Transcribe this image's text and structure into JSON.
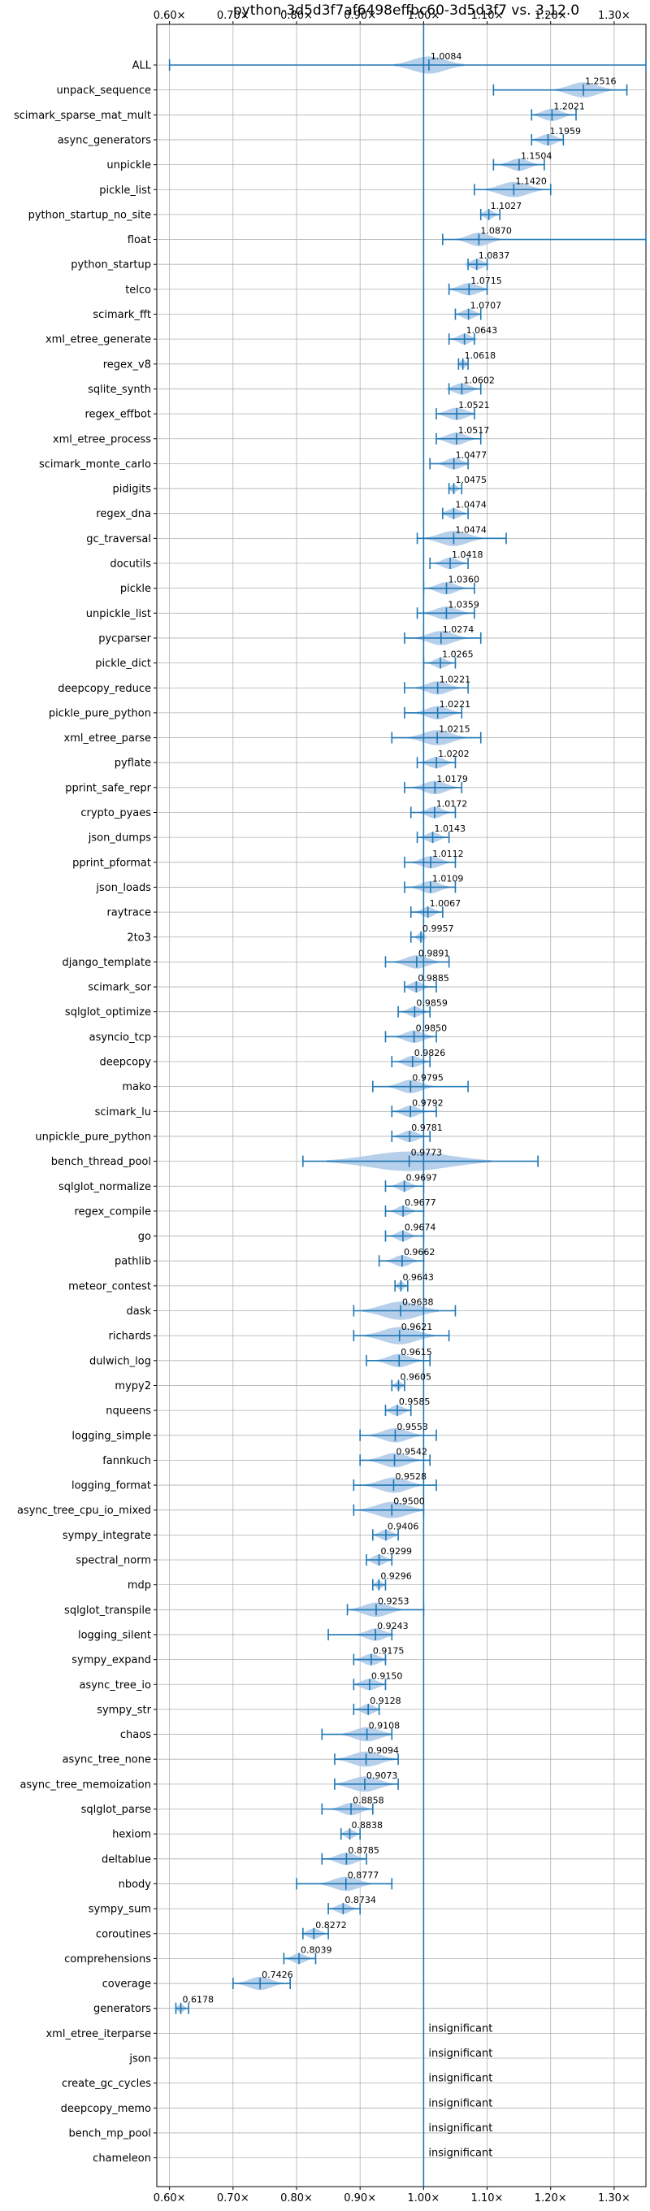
{
  "chart_data": {
    "type": "violin",
    "title": "python-3d5d3f7af6498effbc60-3d5d3f7 vs. 3.12.0",
    "xlim": [
      0.58,
      1.35
    ],
    "xticks": [
      0.6,
      0.7,
      0.8,
      0.9,
      1.0,
      1.1,
      1.2,
      1.3
    ],
    "xtick_labels": [
      "0.60×",
      "0.70×",
      "0.80×",
      "0.90×",
      "1.00×",
      "1.10×",
      "1.20×",
      "1.30×"
    ],
    "reference_line": 1.0,
    "grid": true,
    "colors": {
      "violin": "#a9c7e6",
      "errorbar": "#1f77b4",
      "reference": "#1f77b4",
      "grid": "#b0b0b0"
    },
    "insignificant_label": "insignificant",
    "benchmarks": [
      {
        "name": "ALL",
        "mean": 1.0084,
        "label": "1.0084",
        "min": 0.6,
        "max": 1.35,
        "hw": 0.055
      },
      {
        "name": "unpack_sequence",
        "mean": 1.2516,
        "label": "1.2516",
        "min": 1.11,
        "max": 1.32,
        "hw": 0.045
      },
      {
        "name": "scimark_sparse_mat_mult",
        "mean": 1.2021,
        "label": "1.2021",
        "min": 1.17,
        "max": 1.24,
        "hw": 0.03
      },
      {
        "name": "async_generators",
        "mean": 1.1959,
        "label": "1.1959",
        "min": 1.17,
        "max": 1.22,
        "hw": 0.025
      },
      {
        "name": "unpickle",
        "mean": 1.1504,
        "label": "1.1504",
        "min": 1.11,
        "max": 1.19,
        "hw": 0.03
      },
      {
        "name": "pickle_list",
        "mean": 1.142,
        "label": "1.1420",
        "min": 1.08,
        "max": 1.2,
        "hw": 0.045
      },
      {
        "name": "python_startup_no_site",
        "mean": 1.1027,
        "label": "1.1027",
        "min": 1.09,
        "max": 1.12,
        "hw": 0.015
      },
      {
        "name": "float",
        "mean": 1.087,
        "label": "1.0870",
        "min": 1.03,
        "max": 1.35,
        "hw": 0.035
      },
      {
        "name": "python_startup",
        "mean": 1.0837,
        "label": "1.0837",
        "min": 1.07,
        "max": 1.1,
        "hw": 0.02
      },
      {
        "name": "telco",
        "mean": 1.0715,
        "label": "1.0715",
        "min": 1.04,
        "max": 1.1,
        "hw": 0.03
      },
      {
        "name": "scimark_fft",
        "mean": 1.0707,
        "label": "1.0707",
        "min": 1.05,
        "max": 1.09,
        "hw": 0.02
      },
      {
        "name": "xml_etree_generate",
        "mean": 1.0643,
        "label": "1.0643",
        "min": 1.04,
        "max": 1.08,
        "hw": 0.02
      },
      {
        "name": "regex_v8",
        "mean": 1.0618,
        "label": "1.0618",
        "min": 1.055,
        "max": 1.07,
        "hw": 0.01
      },
      {
        "name": "sqlite_synth",
        "mean": 1.0602,
        "label": "1.0602",
        "min": 1.04,
        "max": 1.09,
        "hw": 0.025
      },
      {
        "name": "regex_effbot",
        "mean": 1.0521,
        "label": "1.0521",
        "min": 1.02,
        "max": 1.08,
        "hw": 0.03
      },
      {
        "name": "xml_etree_process",
        "mean": 1.0517,
        "label": "1.0517",
        "min": 1.02,
        "max": 1.09,
        "hw": 0.03
      },
      {
        "name": "scimark_monte_carlo",
        "mean": 1.0477,
        "label": "1.0477",
        "min": 1.01,
        "max": 1.07,
        "hw": 0.025
      },
      {
        "name": "pidigits",
        "mean": 1.0475,
        "label": "1.0475",
        "min": 1.04,
        "max": 1.06,
        "hw": 0.01
      },
      {
        "name": "regex_dna",
        "mean": 1.0474,
        "label": "1.0474",
        "min": 1.03,
        "max": 1.07,
        "hw": 0.02
      },
      {
        "name": "gc_traversal",
        "mean": 1.0474,
        "label": "1.0474",
        "min": 0.99,
        "max": 1.13,
        "hw": 0.045
      },
      {
        "name": "docutils",
        "mean": 1.0418,
        "label": "1.0418",
        "min": 1.01,
        "max": 1.07,
        "hw": 0.025
      },
      {
        "name": "pickle",
        "mean": 1.036,
        "label": "1.0360",
        "min": 1.0,
        "max": 1.08,
        "hw": 0.03
      },
      {
        "name": "unpickle_list",
        "mean": 1.0359,
        "label": "1.0359",
        "min": 0.99,
        "max": 1.08,
        "hw": 0.035
      },
      {
        "name": "pycparser",
        "mean": 1.0274,
        "label": "1.0274",
        "min": 0.97,
        "max": 1.09,
        "hw": 0.04
      },
      {
        "name": "pickle_dict",
        "mean": 1.0265,
        "label": "1.0265",
        "min": 1.0,
        "max": 1.05,
        "hw": 0.02
      },
      {
        "name": "deepcopy_reduce",
        "mean": 1.0221,
        "label": "1.0221",
        "min": 0.97,
        "max": 1.07,
        "hw": 0.035
      },
      {
        "name": "pickle_pure_python",
        "mean": 1.0221,
        "label": "1.0221",
        "min": 0.97,
        "max": 1.06,
        "hw": 0.035
      },
      {
        "name": "xml_etree_parse",
        "mean": 1.0215,
        "label": "1.0215",
        "min": 0.95,
        "max": 1.09,
        "hw": 0.045
      },
      {
        "name": "pyflate",
        "mean": 1.0202,
        "label": "1.0202",
        "min": 0.99,
        "max": 1.05,
        "hw": 0.025
      },
      {
        "name": "pprint_safe_repr",
        "mean": 1.0179,
        "label": "1.0179",
        "min": 0.97,
        "max": 1.06,
        "hw": 0.035
      },
      {
        "name": "crypto_pyaes",
        "mean": 1.0172,
        "label": "1.0172",
        "min": 0.98,
        "max": 1.05,
        "hw": 0.025
      },
      {
        "name": "json_dumps",
        "mean": 1.0143,
        "label": "1.0143",
        "min": 0.99,
        "max": 1.04,
        "hw": 0.02
      },
      {
        "name": "pprint_pformat",
        "mean": 1.0112,
        "label": "1.0112",
        "min": 0.97,
        "max": 1.05,
        "hw": 0.03
      },
      {
        "name": "json_loads",
        "mean": 1.0109,
        "label": "1.0109",
        "min": 0.97,
        "max": 1.05,
        "hw": 0.03
      },
      {
        "name": "raytrace",
        "mean": 1.0067,
        "label": "1.0067",
        "min": 0.98,
        "max": 1.03,
        "hw": 0.02
      },
      {
        "name": "2to3",
        "mean": 0.9957,
        "label": "0.9957",
        "min": 0.98,
        "max": 1.0,
        "hw": 0.01
      },
      {
        "name": "django_template",
        "mean": 0.9891,
        "label": "0.9891",
        "min": 0.94,
        "max": 1.04,
        "hw": 0.035
      },
      {
        "name": "scimark_sor",
        "mean": 0.9885,
        "label": "0.9885",
        "min": 0.97,
        "max": 1.02,
        "hw": 0.02
      },
      {
        "name": "sqlglot_optimize",
        "mean": 0.9859,
        "label": "0.9859",
        "min": 0.96,
        "max": 1.01,
        "hw": 0.02
      },
      {
        "name": "asyncio_tcp",
        "mean": 0.985,
        "label": "0.9850",
        "min": 0.94,
        "max": 1.02,
        "hw": 0.03
      },
      {
        "name": "deepcopy",
        "mean": 0.9826,
        "label": "0.9826",
        "min": 0.95,
        "max": 1.01,
        "hw": 0.025
      },
      {
        "name": "mako",
        "mean": 0.9795,
        "label": "0.9795",
        "min": 0.92,
        "max": 1.07,
        "hw": 0.035
      },
      {
        "name": "scimark_lu",
        "mean": 0.9792,
        "label": "0.9792",
        "min": 0.95,
        "max": 1.02,
        "hw": 0.025
      },
      {
        "name": "unpickle_pure_python",
        "mean": 0.9781,
        "label": "0.9781",
        "min": 0.95,
        "max": 1.01,
        "hw": 0.025
      },
      {
        "name": "bench_thread_pool",
        "mean": 0.9773,
        "label": "0.9773",
        "min": 0.81,
        "max": 1.18,
        "hw": 0.13
      },
      {
        "name": "sqlglot_normalize",
        "mean": 0.9697,
        "label": "0.9697",
        "min": 0.94,
        "max": 1.0,
        "hw": 0.02
      },
      {
        "name": "regex_compile",
        "mean": 0.9677,
        "label": "0.9677",
        "min": 0.94,
        "max": 1.0,
        "hw": 0.02
      },
      {
        "name": "go",
        "mean": 0.9674,
        "label": "0.9674",
        "min": 0.94,
        "max": 1.0,
        "hw": 0.02
      },
      {
        "name": "pathlib",
        "mean": 0.9662,
        "label": "0.9662",
        "min": 0.93,
        "max": 1.0,
        "hw": 0.025
      },
      {
        "name": "meteor_contest",
        "mean": 0.9643,
        "label": "0.9643",
        "min": 0.955,
        "max": 0.975,
        "hw": 0.01
      },
      {
        "name": "dask",
        "mean": 0.9638,
        "label": "0.9638",
        "min": 0.89,
        "max": 1.05,
        "hw": 0.06
      },
      {
        "name": "richards",
        "mean": 0.9621,
        "label": "0.9621",
        "min": 0.89,
        "max": 1.04,
        "hw": 0.055
      },
      {
        "name": "dulwich_log",
        "mean": 0.9615,
        "label": "0.9615",
        "min": 0.91,
        "max": 1.01,
        "hw": 0.035
      },
      {
        "name": "mypy2",
        "mean": 0.9605,
        "label": "0.9605",
        "min": 0.95,
        "max": 0.97,
        "hw": 0.01
      },
      {
        "name": "nqueens",
        "mean": 0.9585,
        "label": "0.9585",
        "min": 0.94,
        "max": 0.98,
        "hw": 0.02
      },
      {
        "name": "logging_simple",
        "mean": 0.9553,
        "label": "0.9553",
        "min": 0.9,
        "max": 1.02,
        "hw": 0.04
      },
      {
        "name": "fannkuch",
        "mean": 0.9542,
        "label": "0.9542",
        "min": 0.9,
        "max": 1.01,
        "hw": 0.04
      },
      {
        "name": "logging_format",
        "mean": 0.9528,
        "label": "0.9528",
        "min": 0.89,
        "max": 1.02,
        "hw": 0.045
      },
      {
        "name": "async_tree_cpu_io_mixed",
        "mean": 0.95,
        "label": "0.9500",
        "min": 0.89,
        "max": 1.0,
        "hw": 0.05
      },
      {
        "name": "sympy_integrate",
        "mean": 0.9406,
        "label": "0.9406",
        "min": 0.92,
        "max": 0.96,
        "hw": 0.02
      },
      {
        "name": "spectral_norm",
        "mean": 0.9299,
        "label": "0.9299",
        "min": 0.91,
        "max": 0.95,
        "hw": 0.02
      },
      {
        "name": "mdp",
        "mean": 0.9296,
        "label": "0.9296",
        "min": 0.92,
        "max": 0.94,
        "hw": 0.01
      },
      {
        "name": "sqlglot_transpile",
        "mean": 0.9253,
        "label": "0.9253",
        "min": 0.88,
        "max": 1.0,
        "hw": 0.04
      },
      {
        "name": "logging_silent",
        "mean": 0.9243,
        "label": "0.9243",
        "min": 0.85,
        "max": 0.95,
        "hw": 0.03
      },
      {
        "name": "sympy_expand",
        "mean": 0.9175,
        "label": "0.9175",
        "min": 0.89,
        "max": 0.94,
        "hw": 0.025
      },
      {
        "name": "async_tree_io",
        "mean": 0.915,
        "label": "0.9150",
        "min": 0.89,
        "max": 0.94,
        "hw": 0.025
      },
      {
        "name": "sympy_str",
        "mean": 0.9128,
        "label": "0.9128",
        "min": 0.89,
        "max": 0.93,
        "hw": 0.02
      },
      {
        "name": "chaos",
        "mean": 0.9108,
        "label": "0.9108",
        "min": 0.84,
        "max": 0.95,
        "hw": 0.04
      },
      {
        "name": "async_tree_none",
        "mean": 0.9094,
        "label": "0.9094",
        "min": 0.86,
        "max": 0.96,
        "hw": 0.045
      },
      {
        "name": "async_tree_memoization",
        "mean": 0.9073,
        "label": "0.9073",
        "min": 0.86,
        "max": 0.96,
        "hw": 0.045
      },
      {
        "name": "sqlglot_parse",
        "mean": 0.8858,
        "label": "0.8858",
        "min": 0.84,
        "max": 0.92,
        "hw": 0.03
      },
      {
        "name": "hexiom",
        "mean": 0.8838,
        "label": "0.8838",
        "min": 0.87,
        "max": 0.9,
        "hw": 0.015
      },
      {
        "name": "deltablue",
        "mean": 0.8785,
        "label": "0.8785",
        "min": 0.84,
        "max": 0.91,
        "hw": 0.03
      },
      {
        "name": "nbody",
        "mean": 0.8777,
        "label": "0.8777",
        "min": 0.8,
        "max": 0.95,
        "hw": 0.04
      },
      {
        "name": "sympy_sum",
        "mean": 0.8734,
        "label": "0.8734",
        "min": 0.85,
        "max": 0.9,
        "hw": 0.02
      },
      {
        "name": "coroutines",
        "mean": 0.8272,
        "label": "0.8272",
        "min": 0.81,
        "max": 0.85,
        "hw": 0.02
      },
      {
        "name": "comprehensions",
        "mean": 0.8039,
        "label": "0.8039",
        "min": 0.78,
        "max": 0.83,
        "hw": 0.02
      },
      {
        "name": "coverage",
        "mean": 0.7426,
        "label": "0.7426",
        "min": 0.7,
        "max": 0.79,
        "hw": 0.035
      },
      {
        "name": "generators",
        "mean": 0.6178,
        "label": "0.6178",
        "min": 0.61,
        "max": 0.63,
        "hw": 0.01
      },
      {
        "name": "xml_etree_iterparse",
        "insignificant": true
      },
      {
        "name": "json",
        "insignificant": true
      },
      {
        "name": "create_gc_cycles",
        "insignificant": true
      },
      {
        "name": "deepcopy_memo",
        "insignificant": true
      },
      {
        "name": "bench_mp_pool",
        "insignificant": true
      },
      {
        "name": "chameleon",
        "insignificant": true
      }
    ]
  }
}
